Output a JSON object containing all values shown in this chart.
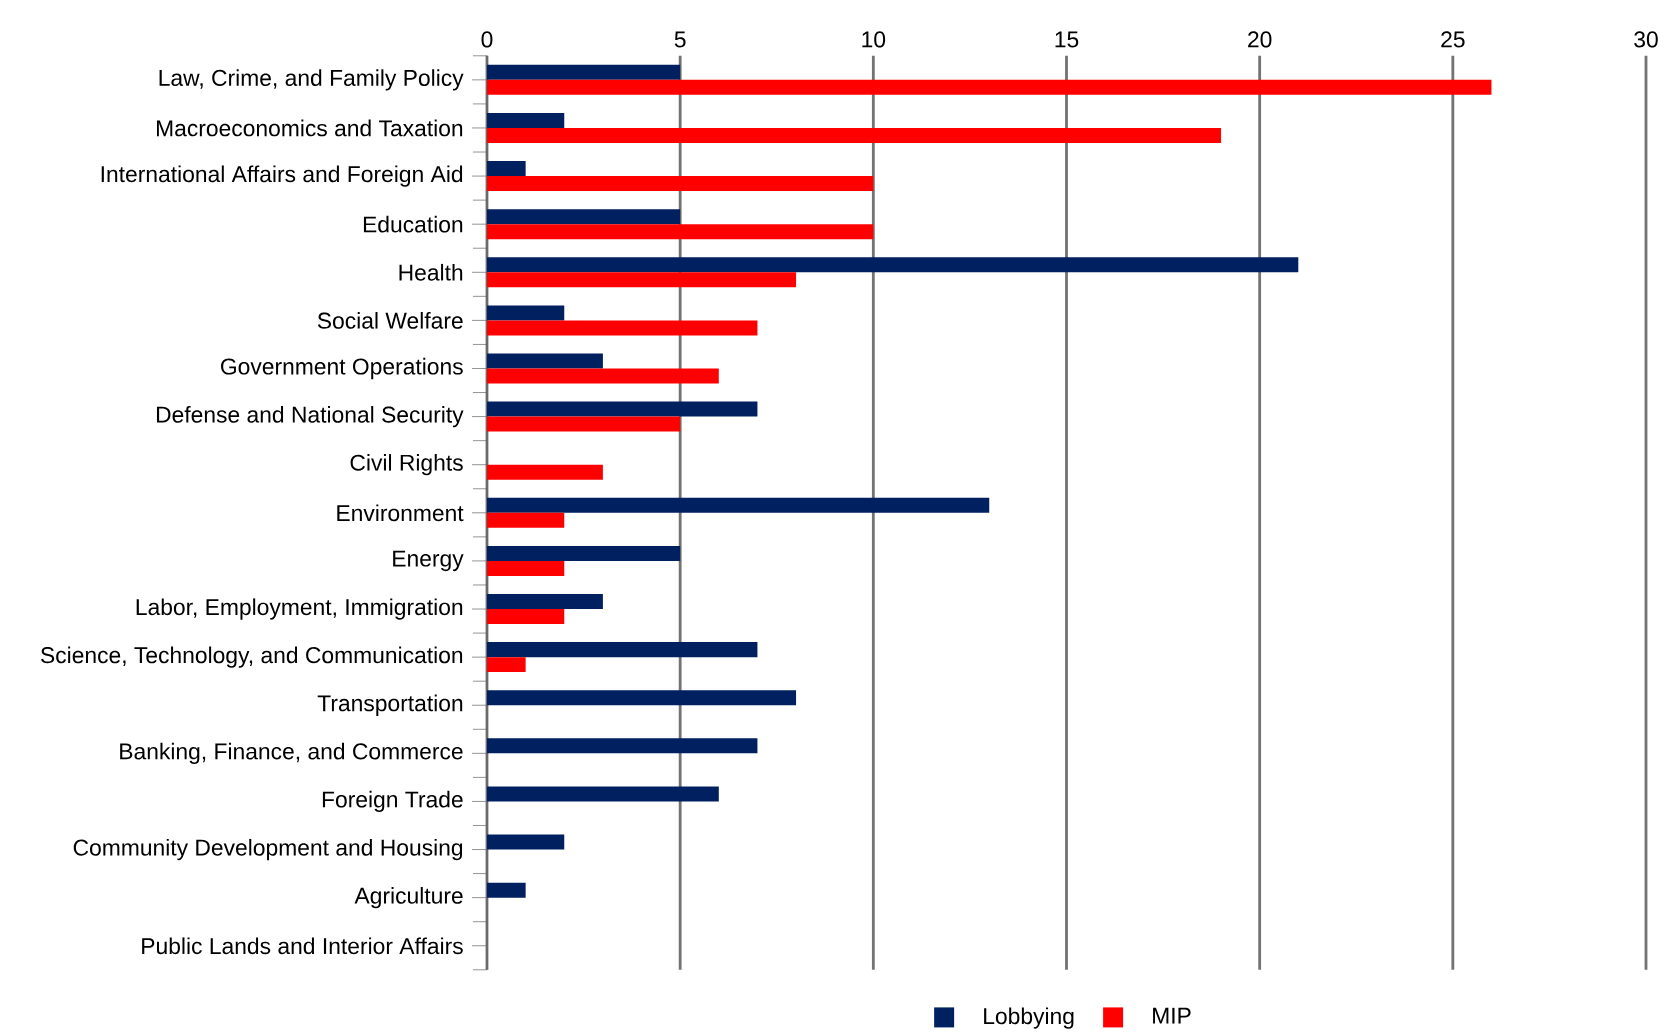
{
  "chart_data": {
    "type": "bar",
    "orientation": "horizontal",
    "categories": [
      "Law, Crime, and Family Policy",
      "Macroeconomics and Taxation",
      "International Affairs and Foreign Aid",
      "Education",
      "Health",
      "Social Welfare",
      "Government Operations",
      "Defense and National Security",
      "Civil Rights",
      "Environment",
      "Energy",
      "Labor, Employment, Immigration",
      "Science, Technology, and Communication",
      "Transportation",
      "Banking, Finance, and Commerce",
      "Foreign Trade",
      "Community Development and Housing",
      "Agriculture",
      "Public Lands and Interior Affairs"
    ],
    "series": [
      {
        "name": "Lobbying",
        "color": "#002060",
        "values": [
          5,
          2,
          1,
          5,
          21,
          2,
          3,
          7,
          0,
          13,
          5,
          3,
          7,
          8,
          7,
          6,
          2,
          1,
          0
        ]
      },
      {
        "name": "MIP",
        "color": "#ff0000",
        "values": [
          26,
          19,
          10,
          10,
          8,
          7,
          6,
          5,
          3,
          2,
          2,
          2,
          1,
          0,
          0,
          0,
          0,
          0,
          0
        ]
      }
    ],
    "xlim": [
      0,
      30
    ],
    "xticks": [
      0,
      5,
      10,
      15,
      20,
      25,
      30
    ],
    "grid": "x",
    "legend": "bottom"
  }
}
